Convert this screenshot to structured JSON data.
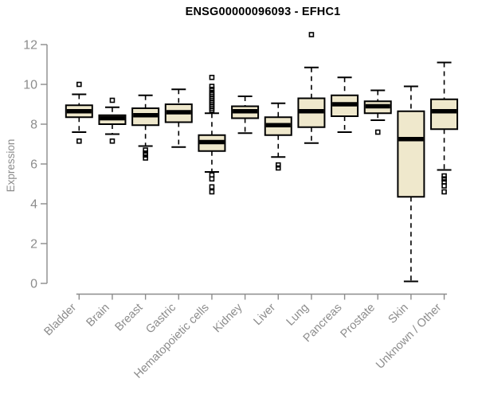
{
  "chart_data": {
    "type": "boxplot",
    "title": "ENSG00000096093 - EFHC1",
    "ylabel": "Expression",
    "xlabel": "",
    "ylim": [
      0,
      12.6
    ],
    "yticks": [
      0,
      2,
      4,
      6,
      8,
      10,
      12
    ],
    "grid": false,
    "legend": "none",
    "categories": [
      "Bladder",
      "Brain",
      "Breast",
      "Gastric",
      "Hematopoietic cells",
      "Kidney",
      "Liver",
      "Lung",
      "Pancreas",
      "Prostate",
      "Skin",
      "Unknown / Other"
    ],
    "series": [
      {
        "category": "Bladder",
        "whisker_low": 7.6,
        "q1": 8.35,
        "median": 8.65,
        "q3": 8.95,
        "whisker_high": 9.5,
        "outliers": [
          10.0,
          7.15
        ]
      },
      {
        "category": "Brain",
        "whisker_low": 7.5,
        "q1": 8.0,
        "median": 8.3,
        "q3": 8.45,
        "whisker_high": 8.85,
        "outliers": [
          9.2,
          7.15
        ]
      },
      {
        "category": "Breast",
        "whisker_low": 6.9,
        "q1": 7.95,
        "median": 8.45,
        "q3": 8.8,
        "whisker_high": 9.45,
        "outliers": [
          6.7,
          6.55,
          6.45,
          6.3
        ]
      },
      {
        "category": "Gastric",
        "whisker_low": 6.85,
        "q1": 8.1,
        "median": 8.6,
        "q3": 9.0,
        "whisker_high": 9.75,
        "outliers": []
      },
      {
        "category": "Hematopoietic cells",
        "whisker_low": 5.6,
        "q1": 6.65,
        "median": 7.1,
        "q3": 7.45,
        "whisker_high": 8.55,
        "outliers": [
          10.35,
          9.9,
          9.75,
          9.6,
          9.5,
          9.4,
          9.3,
          9.2,
          9.1,
          9.0,
          8.9,
          8.8,
          8.7,
          5.45,
          5.25,
          4.85,
          4.6
        ]
      },
      {
        "category": "Kidney",
        "whisker_low": 7.55,
        "q1": 8.3,
        "median": 8.65,
        "q3": 8.9,
        "whisker_high": 9.4,
        "outliers": []
      },
      {
        "category": "Liver",
        "whisker_low": 6.35,
        "q1": 7.45,
        "median": 7.95,
        "q3": 8.35,
        "whisker_high": 9.05,
        "outliers": [
          5.95,
          5.8
        ]
      },
      {
        "category": "Lung",
        "whisker_low": 7.05,
        "q1": 7.85,
        "median": 8.65,
        "q3": 9.3,
        "whisker_high": 10.85,
        "outliers": [
          12.5
        ]
      },
      {
        "category": "Pancreas",
        "whisker_low": 7.6,
        "q1": 8.4,
        "median": 9.0,
        "q3": 9.45,
        "whisker_high": 10.35,
        "outliers": []
      },
      {
        "category": "Prostate",
        "whisker_low": 8.2,
        "q1": 8.55,
        "median": 8.9,
        "q3": 9.15,
        "whisker_high": 9.7,
        "outliers": [
          7.6
        ]
      },
      {
        "category": "Skin",
        "whisker_low": 0.1,
        "q1": 4.35,
        "median": 7.25,
        "q3": 8.65,
        "whisker_high": 9.9,
        "outliers": []
      },
      {
        "category": "Unknown / Other",
        "whisker_low": 5.7,
        "q1": 7.75,
        "median": 8.65,
        "q3": 9.25,
        "whisker_high": 11.1,
        "outliers": [
          5.4,
          5.25,
          5.1,
          4.9,
          4.6
        ]
      }
    ],
    "colors": {
      "box_fill": "#EFE8CC",
      "box_border": "#000000",
      "median": "#000000",
      "whisker": "#000000",
      "outlier": "#000000",
      "axis": "#8c8c8c",
      "tick_label": "#8c8c8c",
      "title": "#000000",
      "background": "#ffffff"
    }
  }
}
